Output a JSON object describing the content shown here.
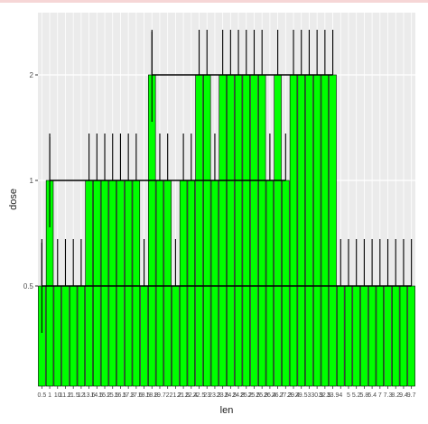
{
  "chart_data": {
    "type": "bar",
    "title": "",
    "xlabel": "len",
    "ylabel": "dose",
    "y_ticks": [
      "0.5",
      "1",
      "2"
    ],
    "categories": [
      "0.5",
      "1",
      "10",
      "11.2",
      "11.5",
      "12",
      "13.6",
      "14.5",
      "15.2",
      "15.5",
      "16.5",
      "17.3",
      "17.6",
      "18.5",
      "18.8",
      "19.7",
      "2",
      "21.2",
      "21.5",
      "22.4",
      "22.5",
      "23",
      "23.3",
      "23.6",
      "24.5",
      "24.8",
      "25.2",
      "25.5",
      "25.8",
      "26.4",
      "26.7",
      "27.3",
      "29.4",
      "29.5",
      "3",
      "30.9",
      "32.5",
      "33.9",
      "4",
      "5",
      "5.2",
      "5.8",
      "6.4",
      "7",
      "7.3",
      "8.2",
      "9.4",
      "9.7"
    ],
    "series": [
      {
        "values": [
          0.5,
          1,
          0.5,
          0.5,
          0.5,
          0.5,
          1,
          1,
          1,
          1,
          1,
          1,
          1,
          0.5,
          2,
          1,
          1,
          0.5,
          1,
          1,
          2,
          2,
          1,
          2,
          2,
          2,
          2,
          2,
          2,
          1,
          2,
          1,
          2,
          2,
          2,
          2,
          2,
          2,
          0.5,
          0.5,
          0.5,
          0.5,
          0.5,
          0.5,
          0.5,
          0.5,
          0.5,
          0.5
        ]
      }
    ],
    "mean_lines": [
      {
        "dose": "0.5"
      },
      {
        "dose": "1"
      },
      {
        "dose": "2"
      }
    ],
    "bar_color": "#00ff00",
    "bar_outline": "#000000",
    "panel_background": "#ebebeb",
    "grid": true,
    "legend": "none"
  }
}
